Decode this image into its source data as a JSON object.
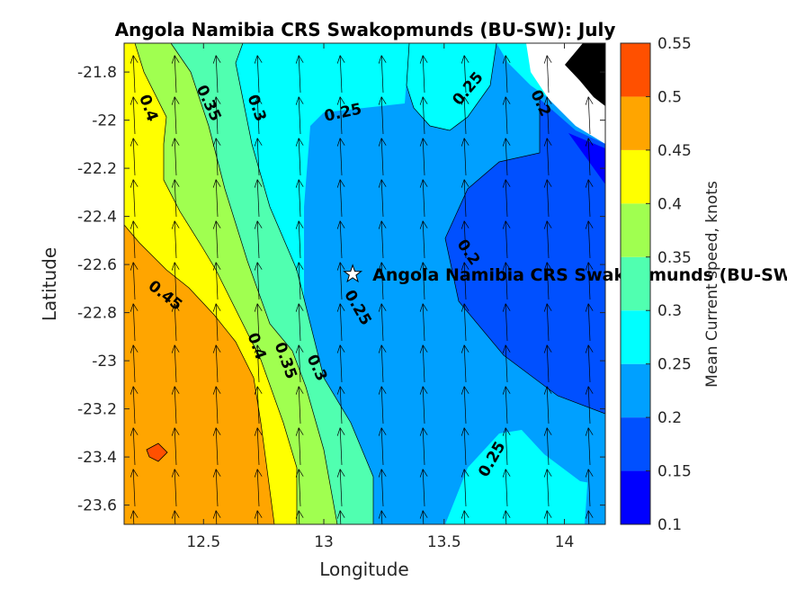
{
  "chart_data": {
    "type": "contour",
    "title": "Angola Namibia CRS Swakopmunds (BU-SW): July",
    "xlabel": "Longitude",
    "ylabel": "Latitude",
    "xlim": [
      12.17,
      14.17
    ],
    "ylim": [
      -23.68,
      -21.68
    ],
    "x_ticks": [
      "12.5",
      "13",
      "13.5",
      "14"
    ],
    "y_ticks": [
      "-21.8",
      "-22",
      "-22.2",
      "-22.4",
      "-22.6",
      "-22.8",
      "-23",
      "-23.2",
      "-23.4",
      "-23.6"
    ],
    "colorbar": {
      "label": "Mean Current speed, knots",
      "ticks": [
        "0.1",
        "0.15",
        "0.2",
        "0.25",
        "0.3",
        "0.35",
        "0.4",
        "0.45",
        "0.5",
        "0.55"
      ],
      "range": [
        0.1,
        0.55
      ],
      "colors": [
        "#0000ff",
        "#0050ff",
        "#00a0ff",
        "#00ffff",
        "#50ffb0",
        "#a0ff50",
        "#ffff00",
        "#ffa500",
        "#ff5000"
      ]
    },
    "contour_labels": [
      {
        "text": "0.4",
        "lon": 12.27,
        "lat": -21.95,
        "angle": 70
      },
      {
        "text": "0.35",
        "lon": 12.52,
        "lat": -21.93,
        "angle": 65
      },
      {
        "text": "0.3",
        "lon": 12.72,
        "lat": -21.95,
        "angle": 70
      },
      {
        "text": "0.25",
        "lon": 13.08,
        "lat": -21.97,
        "angle": -12
      },
      {
        "text": "0.25",
        "lon": 13.6,
        "lat": -21.87,
        "angle": -50
      },
      {
        "text": "0.2",
        "lon": 13.9,
        "lat": -21.93,
        "angle": 65
      },
      {
        "text": "0.2",
        "lon": 13.6,
        "lat": -22.55,
        "angle": 55
      },
      {
        "text": "0.45",
        "lon": 12.34,
        "lat": -22.73,
        "angle": 38
      },
      {
        "text": "0.25",
        "lon": 13.14,
        "lat": -22.78,
        "angle": 60
      },
      {
        "text": "0.4",
        "lon": 12.72,
        "lat": -22.94,
        "angle": 70
      },
      {
        "text": "0.35",
        "lon": 12.84,
        "lat": -23.0,
        "angle": 70
      },
      {
        "text": "0.3",
        "lon": 12.97,
        "lat": -23.03,
        "angle": 65
      },
      {
        "text": "0.25",
        "lon": 13.7,
        "lat": -23.41,
        "angle": -60
      }
    ],
    "station": {
      "name": "Angola Namibia CRS Swakopmunds (BU-SW)",
      "lon": 13.12,
      "lat": -22.64
    }
  }
}
